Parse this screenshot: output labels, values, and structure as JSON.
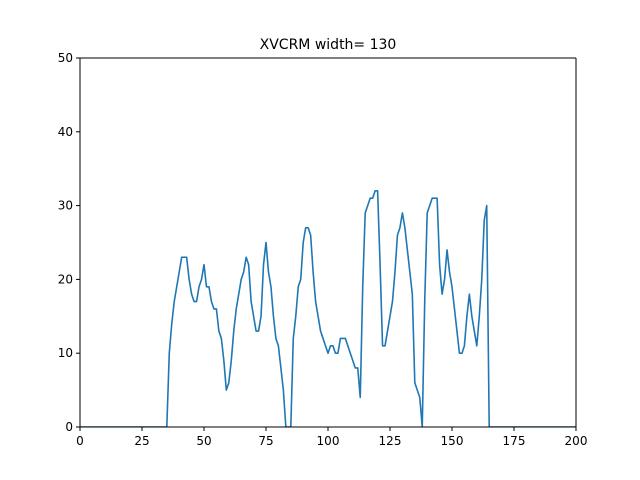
{
  "chart_data": {
    "type": "line",
    "title": "XVCRM width= 130",
    "xlabel": "",
    "ylabel": "",
    "xlim": [
      0,
      200
    ],
    "ylim": [
      0,
      50
    ],
    "xticks": [
      0,
      25,
      50,
      75,
      100,
      125,
      150,
      175,
      200
    ],
    "yticks": [
      0,
      10,
      20,
      30,
      40,
      50
    ],
    "grid": false,
    "series": [
      {
        "color": "#1f77b4",
        "x": [
          0,
          35,
          36,
          37,
          38,
          39,
          40,
          41,
          42,
          43,
          44,
          45,
          46,
          47,
          48,
          49,
          50,
          51,
          52,
          53,
          54,
          55,
          56,
          57,
          58,
          59,
          60,
          61,
          62,
          63,
          64,
          65,
          66,
          67,
          68,
          69,
          70,
          71,
          72,
          73,
          74,
          75,
          76,
          77,
          78,
          79,
          80,
          81,
          82,
          83,
          84,
          85,
          86,
          87,
          88,
          89,
          90,
          91,
          92,
          93,
          94,
          95,
          96,
          97,
          98,
          99,
          100,
          101,
          102,
          103,
          104,
          105,
          106,
          107,
          108,
          109,
          110,
          111,
          112,
          113,
          114,
          115,
          116,
          117,
          118,
          119,
          120,
          121,
          122,
          123,
          124,
          125,
          126,
          127,
          128,
          129,
          130,
          131,
          132,
          133,
          134,
          135,
          136,
          137,
          138,
          139,
          140,
          141,
          142,
          143,
          144,
          145,
          146,
          147,
          148,
          149,
          150,
          151,
          152,
          153,
          154,
          155,
          156,
          157,
          158,
          159,
          160,
          161,
          162,
          163,
          164,
          165,
          166,
          200
        ],
        "y": [
          0,
          0,
          10,
          14,
          17,
          19,
          21,
          23,
          23,
          23,
          20,
          18,
          17,
          17,
          19,
          20,
          22,
          19,
          19,
          17,
          16,
          16,
          13,
          12,
          9,
          5,
          6,
          9,
          13,
          16,
          18,
          20,
          21,
          23,
          22,
          17,
          15,
          13,
          13,
          15,
          22,
          25,
          21,
          19,
          15,
          12,
          11,
          8,
          5,
          0,
          0,
          0,
          12,
          15,
          19,
          20,
          25,
          27,
          27,
          26,
          21,
          17,
          15,
          13,
          12,
          11,
          10,
          11,
          11,
          10,
          10,
          12,
          12,
          12,
          11,
          10,
          9,
          8,
          8,
          4,
          19,
          29,
          30,
          31,
          31,
          32,
          32,
          22,
          11,
          11,
          13,
          15,
          17,
          21,
          26,
          27,
          29,
          27,
          24,
          21,
          18,
          6,
          5,
          4,
          0,
          17,
          29,
          30,
          31,
          31,
          31,
          22,
          18,
          20,
          24,
          21,
          19,
          16,
          13,
          10,
          10,
          11,
          15,
          18,
          15,
          13,
          11,
          15,
          20,
          28,
          30,
          0,
          0,
          0
        ]
      }
    ]
  }
}
